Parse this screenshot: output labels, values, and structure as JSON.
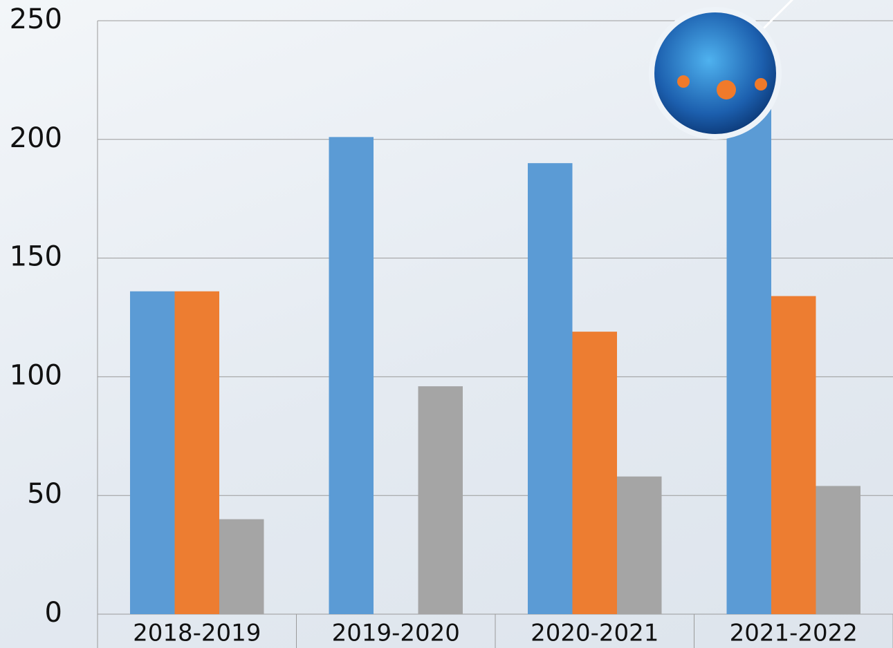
{
  "chart_data": {
    "type": "bar",
    "categories": [
      "2018-2019",
      "2019-2020",
      "2020-2021",
      "2021-2022"
    ],
    "series": [
      {
        "color": "#5b9bd5",
        "values": [
          136,
          201,
          190,
          214
        ]
      },
      {
        "color": "#ed7d31",
        "values": [
          136,
          null,
          119,
          134
        ]
      },
      {
        "color": "#a5a5a5",
        "values": [
          40,
          96,
          58,
          54
        ]
      }
    ],
    "ylim": [
      0,
      250
    ],
    "yticks": [
      0,
      50,
      100,
      150,
      200,
      250
    ],
    "grid": true
  }
}
